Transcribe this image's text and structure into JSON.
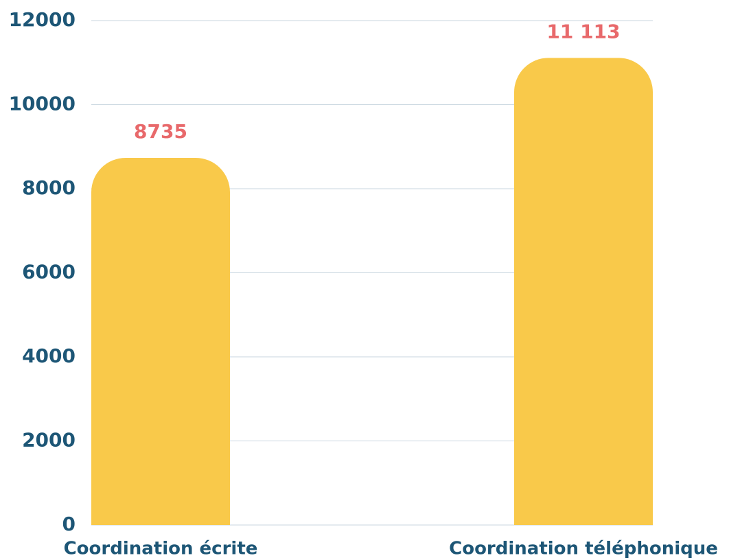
{
  "chart_data": {
    "type": "bar",
    "categories": [
      "Coordination écrite",
      "Coordination téléphonique"
    ],
    "values": [
      8735,
      11113
    ],
    "value_labels": [
      "8735",
      "11 113"
    ],
    "color": "#f9c94a",
    "ylim": [
      0,
      12000
    ],
    "yticks": [
      0,
      2000,
      4000,
      6000,
      8000,
      10000,
      12000
    ],
    "grid": true
  }
}
